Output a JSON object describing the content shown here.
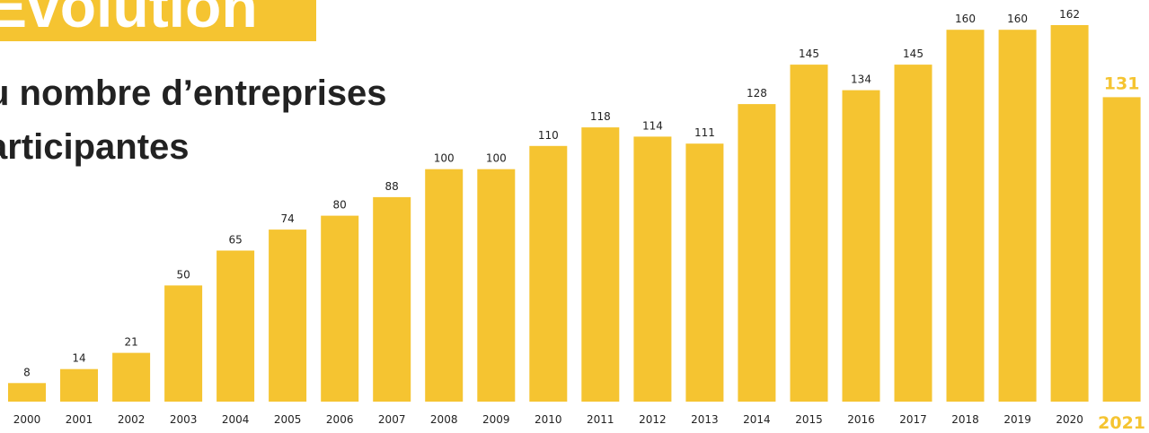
{
  "header": {
    "title": "Evolution",
    "subtitle_line1": "u nombre d’entreprises",
    "subtitle_line2": "articipantes"
  },
  "colors": {
    "bar": "#f5c431",
    "title_box": "#f5c431",
    "text": "#222222",
    "highlight": "#f5c431"
  },
  "chart_data": {
    "type": "bar",
    "categories": [
      "2000",
      "2001",
      "2002",
      "2003",
      "2004",
      "2005",
      "2006",
      "2007",
      "2008",
      "2009",
      "2010",
      "2011",
      "2012",
      "2013",
      "2014",
      "2015",
      "2016",
      "2017",
      "2018",
      "2019",
      "2020",
      "2021"
    ],
    "values": [
      8,
      14,
      21,
      50,
      65,
      74,
      80,
      88,
      100,
      100,
      110,
      118,
      114,
      111,
      128,
      145,
      134,
      145,
      160,
      160,
      162,
      131
    ],
    "highlight_category": "2021",
    "ylim": [
      0,
      162
    ],
    "grid": false,
    "legend": "none"
  }
}
